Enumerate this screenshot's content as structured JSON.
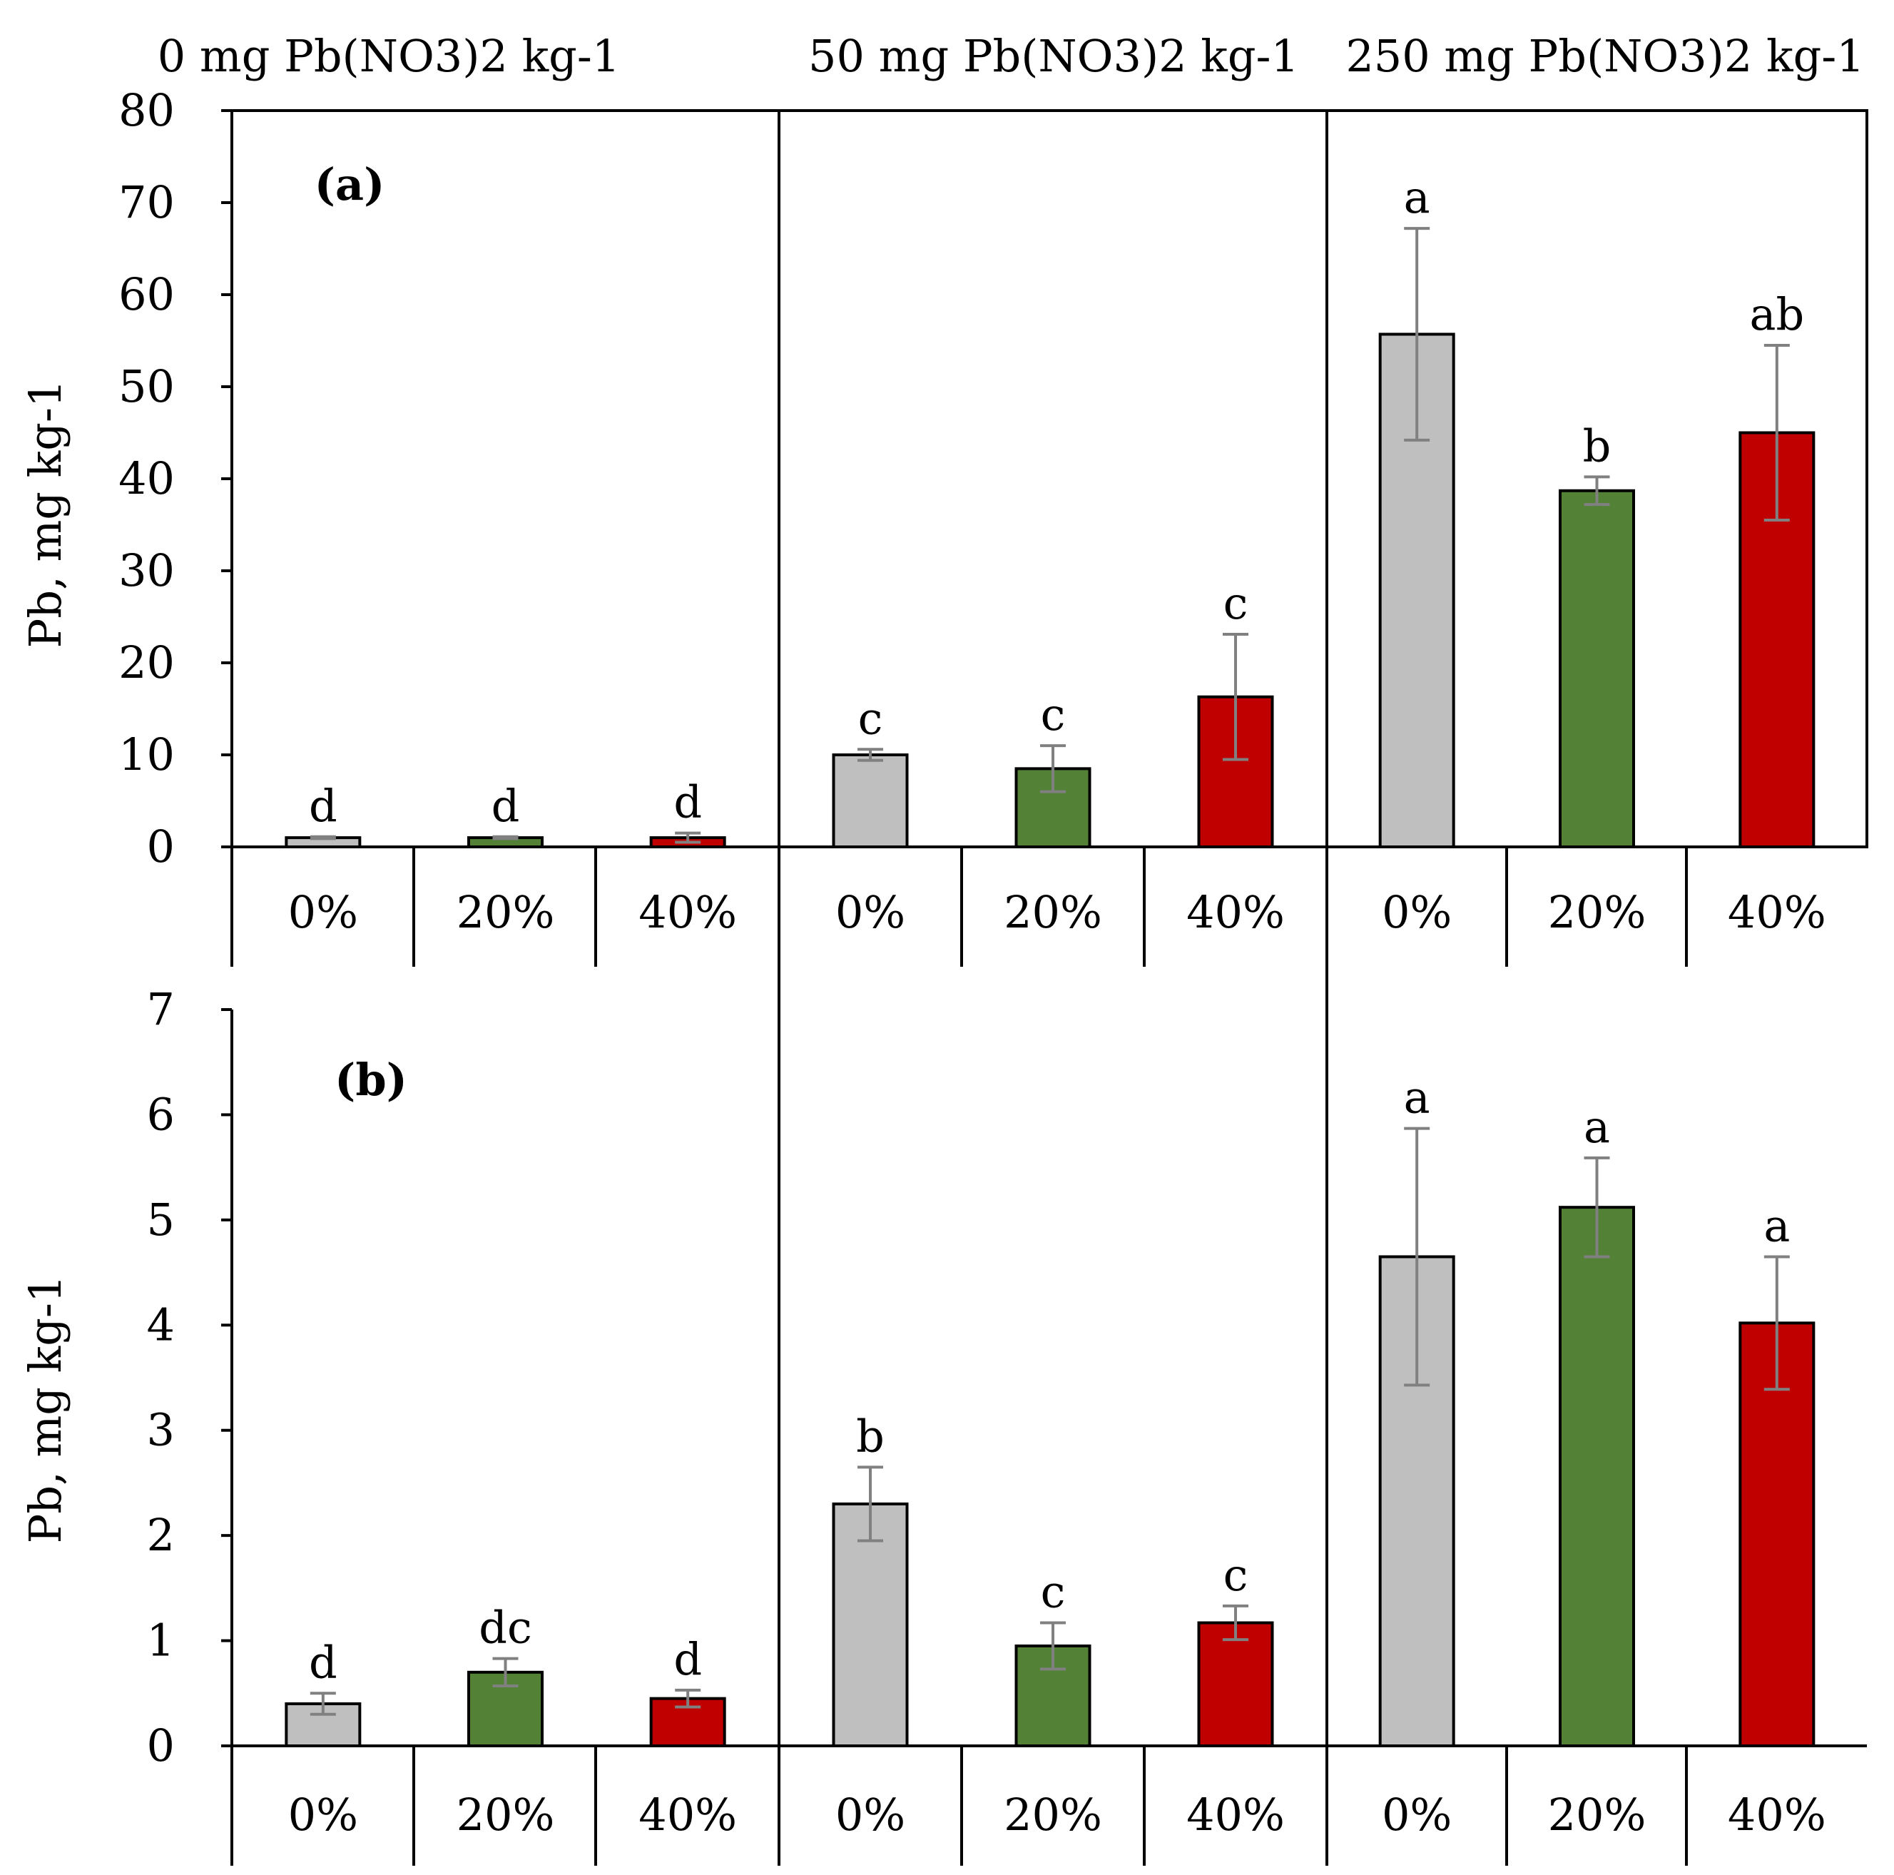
{
  "colors": {
    "0%": "#bfbfbf",
    "20%": "#538135",
    "40%": "#c00000",
    "error": "#808080"
  },
  "group_titles": [
    "0 mg Pb(NO3)2 kg-1",
    "50 mg Pb(NO3)2 kg-1",
    "250 mg Pb(NO3)2 kg-1"
  ],
  "chart_data": [
    {
      "type": "bar",
      "panel_label": "(a)",
      "ylabel": "Pb, mg kg-1",
      "ylim": [
        0,
        80
      ],
      "yticks": [
        "0",
        "10",
        "20",
        "30",
        "40",
        "50",
        "60",
        "70",
        "80"
      ],
      "groups": [
        "0 mg Pb(NO3)2 kg-1",
        "50 mg Pb(NO3)2 kg-1",
        "250 mg Pb(NO3)2 kg-1"
      ],
      "categories": [
        "0%",
        "20%",
        "40%"
      ],
      "series": [
        {
          "name": "0%",
          "values": [
            1.0,
            10.0,
            55.7
          ],
          "errors": [
            0.1,
            0.6,
            11.5
          ],
          "letters": [
            "d",
            "c",
            "a"
          ]
        },
        {
          "name": "20%",
          "values": [
            1.0,
            8.5,
            38.7
          ],
          "errors": [
            0.1,
            2.5,
            1.5
          ],
          "letters": [
            "d",
            "c",
            "b"
          ]
        },
        {
          "name": "40%",
          "values": [
            1.0,
            16.3,
            45.0
          ],
          "errors": [
            0.5,
            6.8,
            9.5
          ],
          "letters": [
            "d",
            "c",
            "ab"
          ]
        }
      ]
    },
    {
      "type": "bar",
      "panel_label": "(b)",
      "ylabel": "Pb, mg kg-1",
      "ylim": [
        0,
        7
      ],
      "yticks": [
        "0",
        "1",
        "2",
        "3",
        "4",
        "5",
        "6",
        "7"
      ],
      "groups": [
        "0 mg Pb(NO3)2 kg-1",
        "50 mg Pb(NO3)2 kg-1",
        "250 mg Pb(NO3)2 kg-1"
      ],
      "categories": [
        "0%",
        "20%",
        "40%"
      ],
      "series": [
        {
          "name": "0%",
          "values": [
            0.4,
            2.3,
            4.65
          ],
          "errors": [
            0.1,
            0.35,
            1.22
          ],
          "letters": [
            "d",
            "b",
            "a"
          ]
        },
        {
          "name": "20%",
          "values": [
            0.7,
            0.95,
            5.12
          ],
          "errors": [
            0.13,
            0.22,
            0.47
          ],
          "letters": [
            "dc",
            "c",
            "a"
          ]
        },
        {
          "name": "40%",
          "values": [
            0.45,
            1.17,
            4.02
          ],
          "errors": [
            0.08,
            0.16,
            0.63
          ],
          "letters": [
            "d",
            "c",
            "a"
          ]
        }
      ]
    }
  ]
}
